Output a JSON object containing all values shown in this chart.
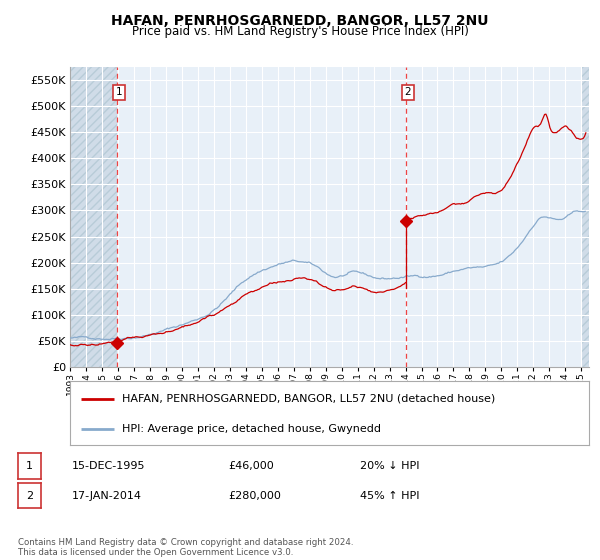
{
  "title": "HAFAN, PENRHOSGARNEDD, BANGOR, LL57 2NU",
  "subtitle": "Price paid vs. HM Land Registry's House Price Index (HPI)",
  "ylim": [
    0,
    575000
  ],
  "yticks": [
    0,
    50000,
    100000,
    150000,
    200000,
    250000,
    300000,
    350000,
    400000,
    450000,
    500000,
    550000
  ],
  "ytick_labels": [
    "£0",
    "£50K",
    "£100K",
    "£150K",
    "£200K",
    "£250K",
    "£300K",
    "£350K",
    "£400K",
    "£450K",
    "£500K",
    "£550K"
  ],
  "background_color": "#ffffff",
  "plot_bg_color": "#e8f0f8",
  "grid_color": "#ffffff",
  "legend_label_red": "HAFAN, PENRHOSGARNEDD, BANGOR, LL57 2NU (detached house)",
  "legend_label_blue": "HPI: Average price, detached house, Gwynedd",
  "annotation1_date": "15-DEC-1995",
  "annotation1_price": "£46,000",
  "annotation1_hpi": "20% ↓ HPI",
  "annotation2_date": "17-JAN-2014",
  "annotation2_price": "£280,000",
  "annotation2_hpi": "45% ↑ HPI",
  "footnote": "Contains HM Land Registry data © Crown copyright and database right 2024.\nThis data is licensed under the Open Government Licence v3.0.",
  "sale1_x": 1995.96,
  "sale1_y": 46000,
  "sale2_x": 2014.04,
  "sale2_y": 280000,
  "vline1_x": 1995.96,
  "vline2_x": 2014.04,
  "hpi_color": "#88aacc",
  "price_color": "#cc0000",
  "dot_color": "#cc0000",
  "vline_color": "#ee4444",
  "xlim_left": 1993.0,
  "xlim_right": 2025.5,
  "hatch_end_x": 1995.96,
  "title_fontsize": 10,
  "subtitle_fontsize": 8.5
}
